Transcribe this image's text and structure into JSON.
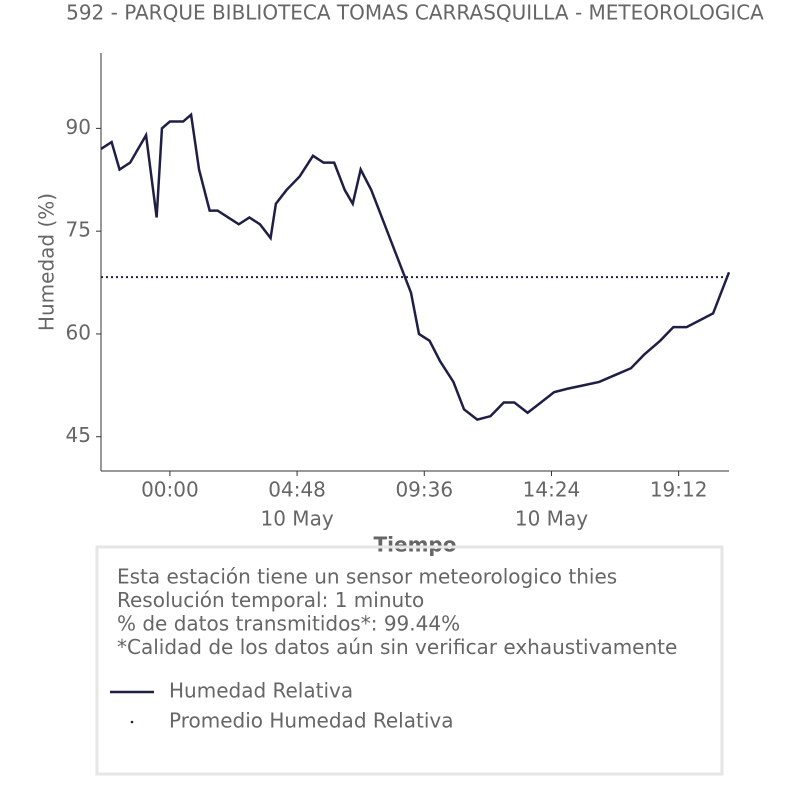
{
  "chart_data": {
    "type": "line",
    "title": "592 - PARQUE BIBLIOTECA TOMAS CARRASQUILLA - METEOROLOGICA",
    "ylabel": "Humedad (%)",
    "xlabel": "Tiempo",
    "x": [
      -2.6,
      -2.2,
      -1.9,
      -1.5,
      -1.2,
      -0.9,
      -0.6,
      -0.5,
      -0.3,
      0,
      0.5,
      0.8,
      1.1,
      1.5,
      1.8,
      2.2,
      2.6,
      3.0,
      3.4,
      3.8,
      4.0,
      4.4,
      4.9,
      5.4,
      5.8,
      6.2,
      6.6,
      6.9,
      7.2,
      7.6,
      7.9,
      8.3,
      8.7,
      9.1,
      9.4,
      9.8,
      10.2,
      10.7,
      11.1,
      11.6,
      12.1,
      12.6,
      13.0,
      13.5,
      14.0,
      14.5,
      15.0,
      15.6,
      16.2,
      16.8,
      17.4,
      17.9,
      18.5,
      19.0,
      19.5,
      20.0,
      20.5,
      20.8,
      21.1
    ],
    "series": [
      {
        "name": "Humedad Relativa",
        "color": "#1f1f45",
        "values": [
          87,
          88,
          84,
          85,
          87,
          89,
          80,
          77,
          90,
          91,
          91,
          92,
          84,
          78,
          78,
          77,
          76,
          77,
          76,
          74,
          79,
          81,
          83,
          86,
          85,
          85,
          81,
          79,
          84,
          81,
          78,
          74,
          70,
          66,
          60,
          59,
          56,
          53,
          49,
          47.5,
          48,
          50,
          50,
          48.5,
          50,
          51.5,
          52,
          52.5,
          53,
          54,
          55,
          57,
          59,
          61,
          61,
          62,
          63,
          66,
          69
        ]
      }
    ],
    "mean": {
      "name": "Promedio Humedad Relativa",
      "value": 68.3,
      "color": "#1f1f45"
    },
    "xlim": [
      -2.6,
      21.1
    ],
    "xticks": [
      {
        "value": 0,
        "label": "00:00"
      },
      {
        "value": 4.8,
        "label": "04:48"
      },
      {
        "value": 9.6,
        "label": "09:36"
      },
      {
        "value": 14.4,
        "label": "14:24"
      },
      {
        "value": 19.2,
        "label": "19:12"
      }
    ],
    "date_labels": [
      {
        "value": 4.8,
        "label": "10 May"
      },
      {
        "value": 14.4,
        "label": "10 May"
      }
    ],
    "ylim": [
      40,
      101
    ],
    "yticks": [
      45,
      60,
      75,
      90
    ],
    "notes": [
      "Esta estación tiene un sensor meteorologico thies",
      "Resolución temporal: 1 minuto",
      "% de datos transmitidos*: 99.44%",
      "*Calidad de los datos aún sin verificar exhaustivamente"
    ]
  }
}
